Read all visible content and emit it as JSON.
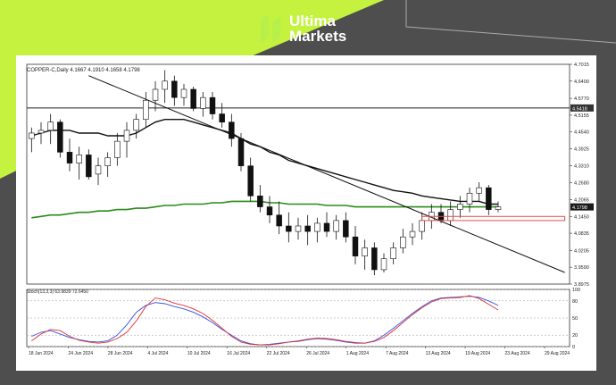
{
  "brand": {
    "line1": "Ultima",
    "line2": "Markets",
    "logo_color": "#b8f04a"
  },
  "colors": {
    "accent": "#c4f23f",
    "background": "#4e4e4e"
  },
  "chart_data": [
    {
      "type": "candlestick",
      "title": "COPPER-C,Daily  4.1667 4.1910 4.1658 4.1798",
      "y_ticks": [
        "4.7015",
        "4.6400",
        "4.5770",
        "4.5418",
        "4.5155",
        "4.4540",
        "4.3925",
        "4.3310",
        "4.2680",
        "4.2065",
        "4.1798",
        "4.1450",
        "4.0835",
        "4.0205",
        "3.9590",
        "3.8975"
      ],
      "current_price": "4.1798",
      "marked_level": "4.5418",
      "ylim": [
        3.8975,
        4.7015
      ],
      "x_ticks": [
        "18 Jun 2024",
        "24 Jun 2024",
        "28 Jun 2024",
        "4 Jul 2024",
        "10 Jul 2024",
        "16 Jul 2024",
        "22 Jul 2024",
        "26 Jul 2024",
        "1 Aug 2024",
        "7 Aug 2024",
        "13 Aug 2024",
        "19 Aug 2024",
        "23 Aug 2024",
        "29 Aug 2024"
      ],
      "ohlc": [
        [
          4.43,
          4.47,
          4.38,
          4.45
        ],
        [
          4.45,
          4.49,
          4.41,
          4.46
        ],
        [
          4.46,
          4.52,
          4.41,
          4.49
        ],
        [
          4.49,
          4.5,
          4.36,
          4.38
        ],
        [
          4.38,
          4.43,
          4.31,
          4.34
        ],
        [
          4.34,
          4.4,
          4.28,
          4.37
        ],
        [
          4.37,
          4.39,
          4.28,
          4.29
        ],
        [
          4.3,
          4.36,
          4.26,
          4.33
        ],
        [
          4.33,
          4.38,
          4.29,
          4.36
        ],
        [
          4.36,
          4.45,
          4.33,
          4.42
        ],
        [
          4.42,
          4.49,
          4.36,
          4.46
        ],
        [
          4.46,
          4.52,
          4.43,
          4.5
        ],
        [
          4.5,
          4.6,
          4.47,
          4.57
        ],
        [
          4.57,
          4.64,
          4.53,
          4.61
        ],
        [
          4.61,
          4.68,
          4.56,
          4.64
        ],
        [
          4.64,
          4.66,
          4.55,
          4.58
        ],
        [
          4.58,
          4.63,
          4.55,
          4.61
        ],
        [
          4.61,
          4.62,
          4.53,
          4.54
        ],
        [
          4.54,
          4.6,
          4.51,
          4.58
        ],
        [
          4.58,
          4.6,
          4.5,
          4.52
        ],
        [
          4.52,
          4.56,
          4.47,
          4.49
        ],
        [
          4.49,
          4.52,
          4.4,
          4.43
        ],
        [
          4.43,
          4.45,
          4.31,
          4.33
        ],
        [
          4.33,
          4.36,
          4.2,
          4.22
        ],
        [
          4.22,
          4.26,
          4.16,
          4.18
        ],
        [
          4.18,
          4.22,
          4.12,
          4.15
        ],
        [
          4.15,
          4.2,
          4.08,
          4.11
        ],
        [
          4.11,
          4.16,
          4.05,
          4.09
        ],
        [
          4.09,
          4.14,
          4.06,
          4.11
        ],
        [
          4.11,
          4.15,
          4.04,
          4.09
        ],
        [
          4.09,
          4.14,
          4.05,
          4.12
        ],
        [
          4.12,
          4.16,
          4.07,
          4.09
        ],
        [
          4.09,
          4.15,
          4.06,
          4.13
        ],
        [
          4.13,
          4.16,
          4.05,
          4.07
        ],
        [
          4.07,
          4.11,
          3.97,
          4.0
        ],
        [
          4.0,
          4.06,
          3.95,
          4.03
        ],
        [
          4.03,
          4.05,
          3.93,
          3.95
        ],
        [
          3.95,
          4.01,
          3.94,
          3.99
        ],
        [
          3.99,
          4.05,
          3.97,
          4.03
        ],
        [
          4.03,
          4.1,
          4.01,
          4.07
        ],
        [
          4.07,
          4.12,
          4.04,
          4.09
        ],
        [
          4.09,
          4.16,
          4.06,
          4.13
        ],
        [
          4.13,
          4.19,
          4.1,
          4.16
        ],
        [
          4.16,
          4.19,
          4.12,
          4.13
        ],
        [
          4.13,
          4.2,
          4.11,
          4.17
        ],
        [
          4.17,
          4.22,
          4.14,
          4.19
        ],
        [
          4.19,
          4.25,
          4.16,
          4.23
        ],
        [
          4.23,
          4.27,
          4.2,
          4.25
        ],
        [
          4.25,
          4.26,
          4.15,
          4.17
        ],
        [
          4.17,
          4.2,
          4.16,
          4.18
        ]
      ],
      "ma_black": [
        4.44,
        4.45,
        4.46,
        4.46,
        4.46,
        4.45,
        4.45,
        4.45,
        4.44,
        4.44,
        4.44,
        4.45,
        4.47,
        4.49,
        4.5,
        4.5,
        4.5,
        4.49,
        4.48,
        4.47,
        4.46,
        4.45,
        4.43,
        4.41,
        4.4,
        4.38,
        4.37,
        4.35,
        4.34,
        4.33,
        4.32,
        4.31,
        4.3,
        4.29,
        4.28,
        4.27,
        4.26,
        4.25,
        4.24,
        4.235,
        4.23,
        4.22,
        4.215,
        4.21,
        4.205,
        4.2,
        4.2,
        4.2,
        4.19,
        4.19
      ],
      "ma_green": [
        4.14,
        4.145,
        4.15,
        4.15,
        4.155,
        4.16,
        4.16,
        4.165,
        4.165,
        4.17,
        4.17,
        4.175,
        4.175,
        4.18,
        4.185,
        4.185,
        4.19,
        4.19,
        4.19,
        4.195,
        4.195,
        4.2,
        4.2,
        4.2,
        4.2,
        4.195,
        4.195,
        4.19,
        4.19,
        4.19,
        4.19,
        4.185,
        4.185,
        4.185,
        4.18,
        4.18,
        4.18,
        4.18,
        4.18,
        4.18,
        4.18,
        4.18,
        4.18,
        4.18,
        4.18,
        4.18,
        4.18,
        4.18,
        4.18,
        4.18
      ],
      "trendline": {
        "from": [
          6,
          4.66
        ],
        "to": [
          56,
          3.94
        ]
      },
      "support_zone": [
        4.13,
        4.145
      ],
      "support_zone_color": "#e05050"
    },
    {
      "type": "line",
      "title": "Stoch(13,3,3) 63.9839 72.6450",
      "y_ticks": [
        "100",
        "80",
        "50",
        "20",
        "0"
      ],
      "ylim": [
        0,
        100
      ],
      "series": [
        {
          "color": "#3050e0",
          "values": [
            18,
            25,
            28,
            22,
            16,
            12,
            9,
            8,
            10,
            20,
            38,
            60,
            72,
            77,
            75,
            70,
            66,
            60,
            52,
            42,
            30,
            20,
            10,
            5,
            3,
            4,
            6,
            8,
            9,
            12,
            14,
            13,
            11,
            8,
            6,
            6,
            10,
            20,
            32,
            45,
            58,
            70,
            80,
            85,
            86,
            87,
            88,
            86,
            80,
            72
          ]
        },
        {
          "color": "#e03030",
          "values": [
            10,
            22,
            30,
            28,
            18,
            11,
            8,
            6,
            8,
            14,
            25,
            45,
            70,
            85,
            82,
            76,
            72,
            66,
            58,
            46,
            32,
            18,
            8,
            4,
            3,
            3,
            5,
            8,
            10,
            13,
            15,
            14,
            12,
            9,
            7,
            6,
            9,
            16,
            28,
            42,
            56,
            68,
            78,
            84,
            85,
            86,
            89,
            84,
            74,
            64
          ]
        }
      ]
    }
  ]
}
